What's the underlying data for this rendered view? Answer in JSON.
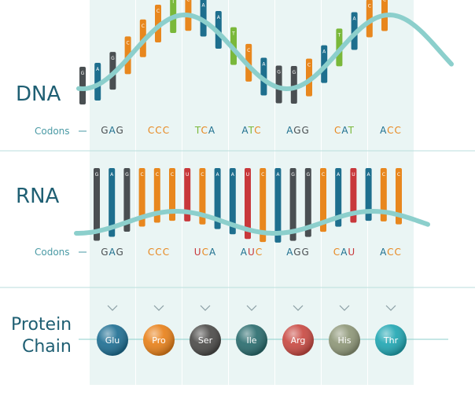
{
  "labels": {
    "dna": "DNA",
    "rna": "RNA",
    "protein_line1": "Protein",
    "protein_line2": "Chain",
    "codons": "Codons"
  },
  "colors": {
    "A": "#1e6f8e",
    "G": "#4a4f52",
    "C": "#e8871e",
    "T": "#7ab83a",
    "U": "#c8383b",
    "strand": "#8ccfcc",
    "column": "#eaf5f4",
    "divider": "#b9dedd",
    "title": "#1f5f73"
  },
  "dna_codons": [
    "GAG",
    "CCC",
    "TCA",
    "ATC",
    "AGG",
    "CAT",
    "ACC"
  ],
  "rna_codons": [
    "GAG",
    "CCC",
    "UCA",
    "AUC",
    "AGG",
    "CAU",
    "ACC"
  ],
  "amino_acids": [
    {
      "name": "Glu",
      "color": "#1f6f93"
    },
    {
      "name": "Pro",
      "color": "#e8811a"
    },
    {
      "name": "Ser",
      "color": "#4c4b49"
    },
    {
      "name": "Ile",
      "color": "#2a6c6e"
    },
    {
      "name": "Arg",
      "color": "#c94a43"
    },
    {
      "name": "His",
      "color": "#8e9778"
    },
    {
      "name": "Thr",
      "color": "#21a7b3"
    }
  ]
}
